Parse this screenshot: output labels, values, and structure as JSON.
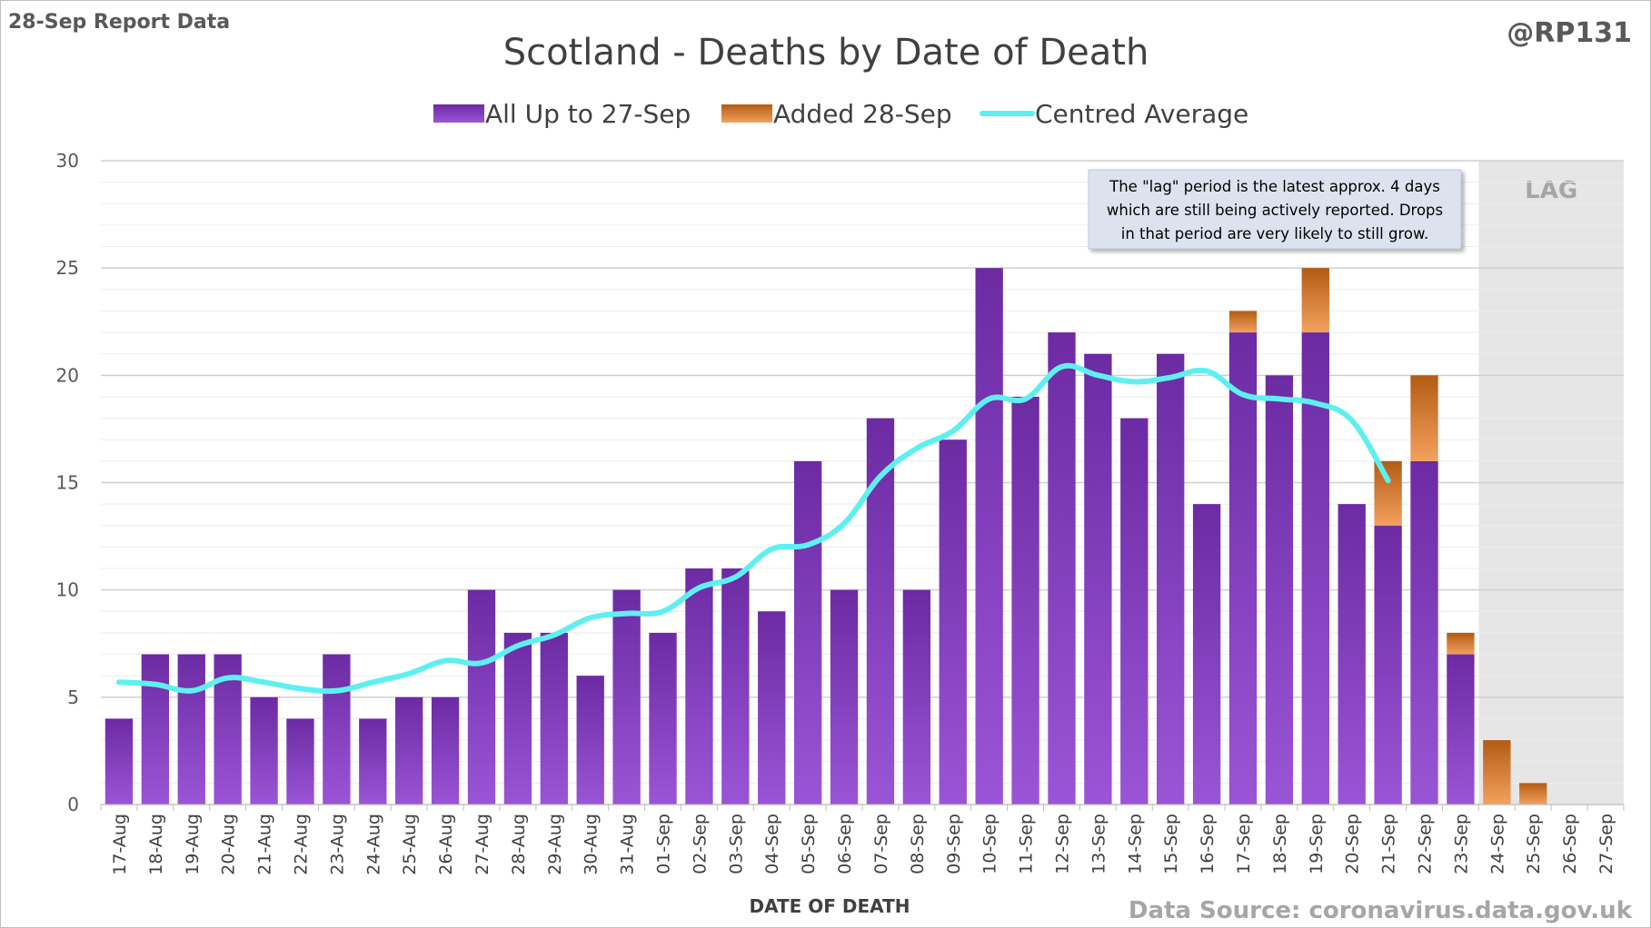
{
  "header": {
    "report_label": "28-Sep Report Data",
    "handle": "@RP131",
    "source": "Data Source: coronavirus.data.gov.uk"
  },
  "annotation": {
    "lines": [
      "The \"lag\" period is the latest approx. 4 days",
      "which are still being actively reported.  Drops",
      "in that period are very likely to still grow."
    ],
    "lag_label": "LAG"
  },
  "colors": {
    "base_bar": "#7b32b5",
    "added_bar": "#e07f2e",
    "average_line": "#5ef0f0",
    "lag_shade": "#e6e6e6",
    "grid": "#d9d9d9",
    "text": "#595959"
  },
  "chart_data": {
    "type": "bar",
    "title": "Scotland - Deaths by Date of Death",
    "xlabel": "DATE OF DEATH",
    "ylabel": "",
    "ylim": [
      0,
      30
    ],
    "yticks": [
      0,
      5,
      10,
      15,
      20,
      25,
      30
    ],
    "grid": true,
    "legend_position": "top",
    "stacked": true,
    "categories": [
      "17-Aug",
      "18-Aug",
      "19-Aug",
      "20-Aug",
      "21-Aug",
      "22-Aug",
      "23-Aug",
      "24-Aug",
      "25-Aug",
      "26-Aug",
      "27-Aug",
      "28-Aug",
      "29-Aug",
      "30-Aug",
      "31-Aug",
      "01-Sep",
      "02-Sep",
      "03-Sep",
      "04-Sep",
      "05-Sep",
      "06-Sep",
      "07-Sep",
      "08-Sep",
      "09-Sep",
      "10-Sep",
      "11-Sep",
      "12-Sep",
      "13-Sep",
      "14-Sep",
      "15-Sep",
      "16-Sep",
      "17-Sep",
      "18-Sep",
      "19-Sep",
      "20-Sep",
      "21-Sep",
      "22-Sep",
      "23-Sep",
      "24-Sep",
      "25-Sep",
      "26-Sep",
      "27-Sep"
    ],
    "series": [
      {
        "name": "All Up to 27-Sep",
        "kind": "bar",
        "values": [
          4,
          7,
          7,
          7,
          5,
          4,
          7,
          4,
          5,
          5,
          10,
          8,
          8,
          6,
          10,
          8,
          11,
          11,
          9,
          16,
          10,
          18,
          10,
          17,
          25,
          19,
          22,
          21,
          18,
          21,
          14,
          22,
          20,
          22,
          14,
          13,
          16,
          7,
          0,
          0,
          0,
          0
        ]
      },
      {
        "name": "Added 28-Sep",
        "kind": "bar",
        "values": [
          0,
          0,
          0,
          0,
          0,
          0,
          0,
          0,
          0,
          0,
          0,
          0,
          0,
          0,
          0,
          0,
          0,
          0,
          0,
          0,
          0,
          0,
          0,
          0,
          0,
          0,
          0,
          0,
          0,
          0,
          0,
          1,
          0,
          3,
          0,
          3,
          4,
          1,
          3,
          1,
          0,
          0
        ]
      },
      {
        "name": "Centred Average",
        "kind": "line",
        "values": [
          5.7,
          5.6,
          5.3,
          5.9,
          5.7,
          5.4,
          5.3,
          5.7,
          6.1,
          6.7,
          6.6,
          7.4,
          7.9,
          8.7,
          8.9,
          9.0,
          10.1,
          10.6,
          11.9,
          12.1,
          13.1,
          15.3,
          16.6,
          17.4,
          18.9,
          18.9,
          20.4,
          20.0,
          19.7,
          19.9,
          20.2,
          19.1,
          18.9,
          18.7,
          17.9,
          15.1,
          null,
          null,
          null,
          null,
          null,
          null
        ]
      }
    ],
    "lag_start_category": "24-Sep"
  }
}
